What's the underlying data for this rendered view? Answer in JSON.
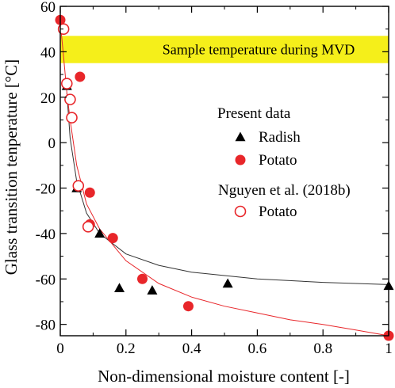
{
  "chart_data": {
    "type": "scatter",
    "xlabel": "Non-dimensional moisture content [-]",
    "ylabel": "Glass transition tenperature [°C]",
    "xlim": [
      0,
      1
    ],
    "ylim": [
      -85,
      60
    ],
    "xticks": [
      0,
      0.2,
      0.4,
      0.6,
      0.8,
      1
    ],
    "xtick_labels": [
      "0",
      "0.2",
      "0.4",
      "0.6",
      "0.8",
      "1"
    ],
    "yticks": [
      -80,
      -60,
      -40,
      -20,
      0,
      20,
      40,
      60
    ],
    "ytick_labels": [
      "-80",
      "-60",
      "-40",
      "-20",
      "0",
      "20",
      "40",
      "60"
    ],
    "band": {
      "y_range": [
        35,
        47
      ],
      "color": "#f5ef1a",
      "label": "Sample temperature during MVD"
    },
    "legend": {
      "placement": "right",
      "group1_title": "Present data",
      "group2_title": "Nguyen et al. (2018b)"
    },
    "series": [
      {
        "name": "Radish",
        "marker": "triangle",
        "color": "#000000",
        "points": [
          {
            "x": 0.02,
            "y": 25
          },
          {
            "x": 0.05,
            "y": -20
          },
          {
            "x": 0.12,
            "y": -40
          },
          {
            "x": 0.18,
            "y": -64
          },
          {
            "x": 0.28,
            "y": -65
          },
          {
            "x": 0.51,
            "y": -62
          },
          {
            "x": 1.0,
            "y": -63
          }
        ]
      },
      {
        "name": "Potato",
        "marker": "filled-circle",
        "color": "#e8262a",
        "points": [
          {
            "x": 0.0,
            "y": 54
          },
          {
            "x": 0.06,
            "y": 29
          },
          {
            "x": 0.09,
            "y": -22
          },
          {
            "x": 0.09,
            "y": -36
          },
          {
            "x": 0.16,
            "y": -42
          },
          {
            "x": 0.25,
            "y": -60
          },
          {
            "x": 0.39,
            "y": -72
          },
          {
            "x": 1.0,
            "y": -85
          }
        ]
      },
      {
        "name": "Potato",
        "marker": "open-circle",
        "color": "#e8262a",
        "points": [
          {
            "x": 0.01,
            "y": 50
          },
          {
            "x": 0.02,
            "y": 26
          },
          {
            "x": 0.03,
            "y": 19
          },
          {
            "x": 0.035,
            "y": 11
          },
          {
            "x": 0.055,
            "y": -19
          },
          {
            "x": 0.085,
            "y": -37
          }
        ]
      }
    ],
    "fit_curves": [
      {
        "color": "#333333",
        "points": [
          {
            "x": 0.02,
            "y": 22
          },
          {
            "x": 0.03,
            "y": 2
          },
          {
            "x": 0.05,
            "y": -17
          },
          {
            "x": 0.08,
            "y": -31
          },
          {
            "x": 0.12,
            "y": -40
          },
          {
            "x": 0.2,
            "y": -49
          },
          {
            "x": 0.3,
            "y": -54
          },
          {
            "x": 0.4,
            "y": -57
          },
          {
            "x": 0.6,
            "y": -60
          },
          {
            "x": 0.8,
            "y": -61.5
          },
          {
            "x": 1.0,
            "y": -62.5
          }
        ]
      },
      {
        "color": "#e8262a",
        "points": [
          {
            "x": 0.0,
            "y": 53
          },
          {
            "x": 0.01,
            "y": 38
          },
          {
            "x": 0.02,
            "y": 22
          },
          {
            "x": 0.03,
            "y": 10
          },
          {
            "x": 0.05,
            "y": -10
          },
          {
            "x": 0.08,
            "y": -27
          },
          {
            "x": 0.12,
            "y": -38
          },
          {
            "x": 0.2,
            "y": -52
          },
          {
            "x": 0.3,
            "y": -62
          },
          {
            "x": 0.4,
            "y": -68
          },
          {
            "x": 0.5,
            "y": -72
          },
          {
            "x": 0.6,
            "y": -75
          },
          {
            "x": 0.7,
            "y": -78
          },
          {
            "x": 0.8,
            "y": -80
          },
          {
            "x": 0.9,
            "y": -82.5
          },
          {
            "x": 1.0,
            "y": -85
          }
        ]
      }
    ]
  }
}
